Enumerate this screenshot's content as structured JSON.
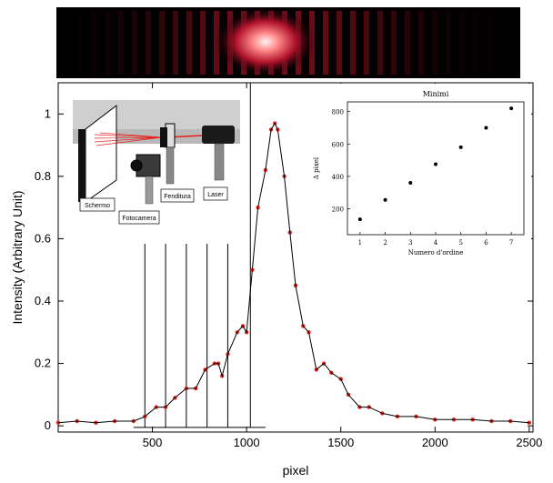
{
  "chart_data": [
    {
      "type": "scatter",
      "xlabel": "pixel",
      "ylabel": "Intensity (Arbitrary Unit)",
      "xlim": [
        0,
        2520
      ],
      "ylim": [
        -0.02,
        1.1
      ],
      "x_ticks": [
        500,
        1000,
        1500,
        2000,
        2500
      ],
      "x_tick_labels": [
        "500",
        "1000",
        "1500",
        "2000",
        "2500"
      ],
      "y_ticks": [
        0,
        0.2,
        0.4,
        0.6,
        0.8,
        1
      ],
      "y_tick_labels": [
        "0",
        "0.2",
        "0.4",
        "0.6",
        "0.8",
        "1"
      ],
      "grid": false,
      "series": [
        {
          "kind": "scatter",
          "color": "#e8201b",
          "x": [
            0,
            100,
            200,
            300,
            400,
            460,
            520,
            570,
            620,
            680,
            730,
            780,
            830,
            850,
            870,
            900,
            950,
            980,
            1000,
            1030,
            1060,
            1100,
            1130,
            1150,
            1165,
            1200,
            1230,
            1260,
            1300,
            1330,
            1370,
            1410,
            1450,
            1500,
            1540,
            1600,
            1650,
            1720,
            1800,
            1900,
            2000,
            2100,
            2200,
            2300,
            2400,
            2500
          ],
          "y": [
            0.01,
            0.015,
            0.01,
            0.015,
            0.015,
            0.03,
            0.06,
            0.06,
            0.09,
            0.12,
            0.12,
            0.18,
            0.2,
            0.2,
            0.16,
            0.23,
            0.3,
            0.32,
            0.3,
            0.5,
            0.7,
            0.82,
            0.95,
            0.97,
            0.95,
            0.8,
            0.62,
            0.45,
            0.32,
            0.3,
            0.18,
            0.2,
            0.17,
            0.15,
            0.1,
            0.06,
            0.06,
            0.04,
            0.03,
            0.03,
            0.02,
            0.02,
            0.02,
            0.015,
            0.015,
            0.01
          ]
        },
        {
          "kind": "line",
          "color": "#000000",
          "x": [
            0,
            100,
            200,
            300,
            400,
            460,
            520,
            570,
            620,
            680,
            730,
            780,
            830,
            850,
            870,
            900,
            950,
            980,
            1000,
            1030,
            1060,
            1100,
            1130,
            1150,
            1165,
            1200,
            1230,
            1260,
            1300,
            1330,
            1370,
            1410,
            1450,
            1500,
            1540,
            1600,
            1650,
            1720,
            1800,
            1900,
            2000,
            2100,
            2200,
            2300,
            2400,
            2500
          ],
          "y": [
            0.01,
            0.015,
            0.01,
            0.015,
            0.015,
            0.03,
            0.06,
            0.06,
            0.09,
            0.12,
            0.12,
            0.18,
            0.2,
            0.2,
            0.16,
            0.23,
            0.3,
            0.32,
            0.3,
            0.5,
            0.7,
            0.82,
            0.95,
            0.97,
            0.95,
            0.8,
            0.62,
            0.45,
            0.32,
            0.3,
            0.18,
            0.2,
            0.17,
            0.15,
            0.1,
            0.06,
            0.06,
            0.04,
            0.03,
            0.03,
            0.02,
            0.02,
            0.02,
            0.015,
            0.015,
            0.01
          ]
        }
      ],
      "minima_markers_x": [
        460,
        570,
        680,
        790,
        900,
        1020
      ],
      "baseline_segment_x": [
        400,
        1100
      ]
    },
    {
      "type": "scatter",
      "title": "Minimi",
      "xlabel": "Numero d'ordine",
      "ylabel": "Δ pixel",
      "xlim": [
        0.5,
        7.5
      ],
      "ylim": [
        40,
        860
      ],
      "x_ticks": [
        1,
        2,
        3,
        4,
        5,
        6,
        7
      ],
      "x_tick_labels": [
        "1",
        "2",
        "3",
        "4",
        "5",
        "6",
        "7"
      ],
      "y_ticks": [
        200,
        400,
        600,
        800
      ],
      "y_tick_labels": [
        "200",
        "400",
        "600",
        "800"
      ],
      "x": [
        1,
        2,
        3,
        4,
        5,
        6,
        7
      ],
      "y": [
        135,
        255,
        360,
        475,
        580,
        700,
        820
      ]
    }
  ],
  "setup_labels": {
    "schermo": "Schermo",
    "fenditura": "Fenditura",
    "laser": "Laser",
    "fotocamera": "Fotocamera"
  }
}
